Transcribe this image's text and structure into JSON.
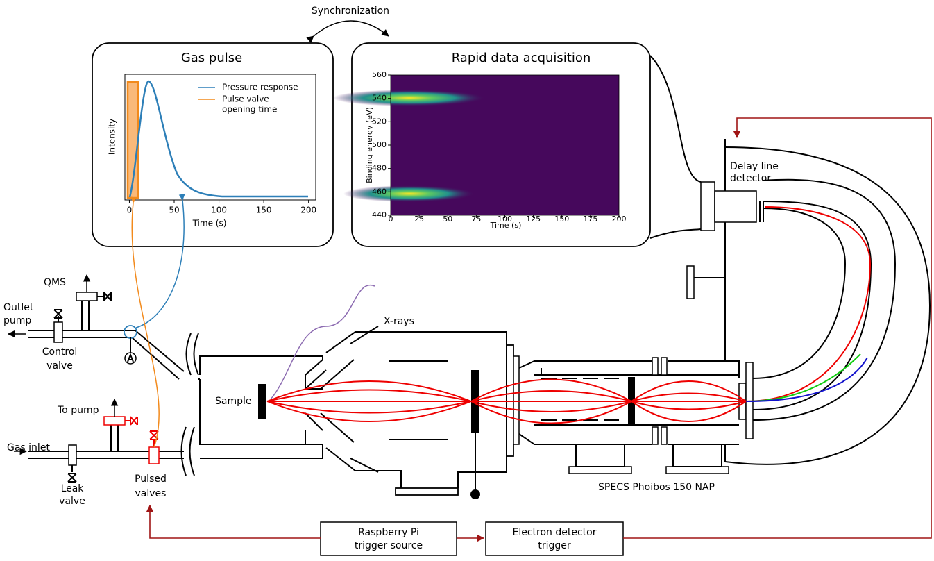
{
  "synchronization": "Synchronization",
  "gas_pulse": {
    "title": "Gas pulse",
    "xlabel": "Time (s)",
    "ylabel": "Intensity",
    "xticks": [
      0,
      50,
      100,
      150,
      200
    ],
    "xlim": [
      -5,
      208
    ],
    "legend": [
      "Pressure response",
      "Pulse valve",
      "opening time"
    ]
  },
  "heatmap": {
    "title": "Rapid data acquisition",
    "xlabel": "Time (s)",
    "ylabel": "Binding energy (eV)",
    "xticks": [
      0,
      25,
      50,
      75,
      100,
      125,
      150,
      175,
      200
    ],
    "xlim": [
      0,
      200
    ],
    "yticks": [
      440,
      460,
      480,
      500,
      520,
      540,
      560
    ],
    "ylim": [
      440,
      560
    ]
  },
  "labels": {
    "qms": "QMS",
    "outlet_pump": [
      "Outlet",
      "pump"
    ],
    "control_valve": [
      "Control",
      "valve"
    ],
    "x_rays": "X-rays",
    "sample": "Sample",
    "to_pump": "To pump",
    "gas_inlet": "Gas inlet",
    "leak_valve": [
      "Leak",
      "valve"
    ],
    "pulsed_valves": [
      "Pulsed",
      "valves"
    ],
    "analyzer": "SPECS Phoibos 150 NAP",
    "detector": [
      "Delay line",
      "detector"
    ]
  },
  "boxes": {
    "raspberry": [
      "Raspberry Pi",
      "trigger source"
    ],
    "electron": [
      "Electron detector",
      "trigger"
    ]
  }
}
